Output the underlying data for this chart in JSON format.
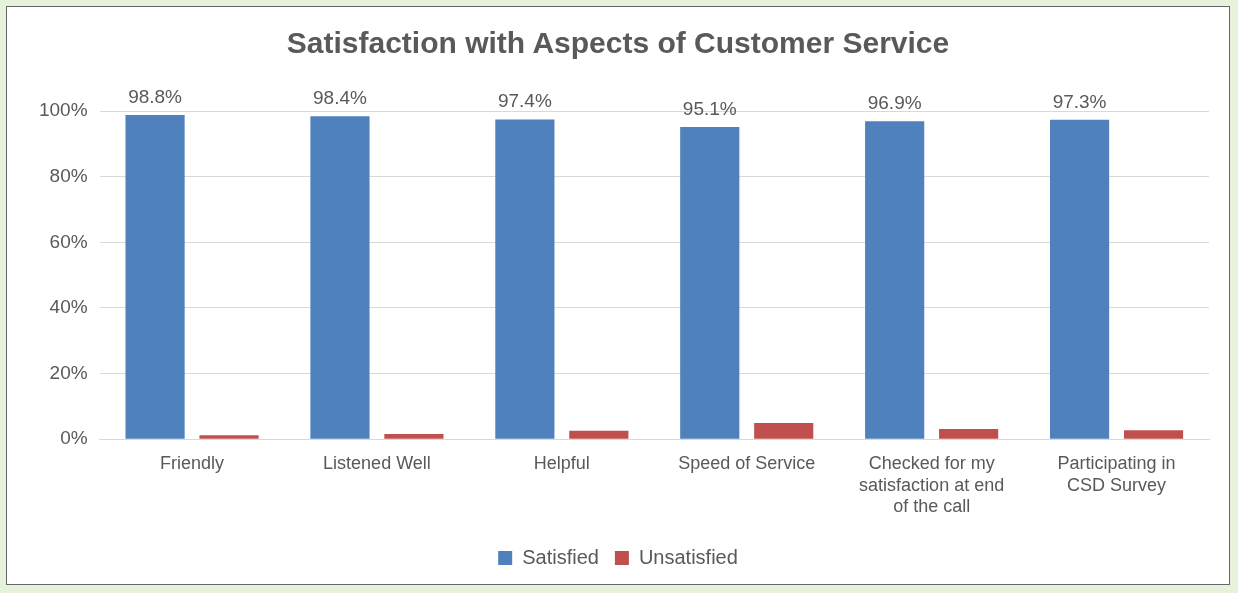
{
  "chart_data": {
    "type": "bar",
    "title": "Satisfaction with Aspects of Customer Service",
    "categories": [
      "Friendly",
      "Listened Well",
      "Helpful",
      "Speed of Service",
      "Checked for my satisfaction at end of the call",
      "Participating in CSD Survey"
    ],
    "series": [
      {
        "name": "Satisfied",
        "color": "#4f81bd",
        "values": [
          98.8,
          98.4,
          97.4,
          95.1,
          96.9,
          97.3
        ],
        "value_labels": [
          "98.8%",
          "98.4%",
          "97.4%",
          "95.1%",
          "96.9%",
          "97.3%"
        ]
      },
      {
        "name": "Unsatisfied",
        "color": "#c0504d",
        "values": [
          1.2,
          1.6,
          2.6,
          4.9,
          3.1,
          2.7
        ]
      }
    ],
    "ylim": [
      0,
      100
    ],
    "yticks": [
      {
        "value": 0,
        "label": "0%"
      },
      {
        "value": 20,
        "label": "20%"
      },
      {
        "value": 40,
        "label": "40%"
      },
      {
        "value": 60,
        "label": "60%"
      },
      {
        "value": 80,
        "label": "80%"
      },
      {
        "value": 100,
        "label": "100%"
      }
    ],
    "grid": "y",
    "legend": "bottom"
  }
}
